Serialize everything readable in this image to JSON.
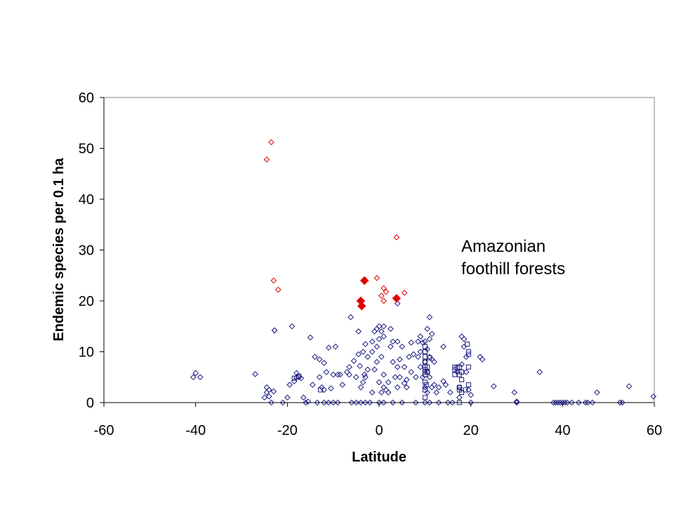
{
  "chart_data": {
    "type": "scatter",
    "title": "",
    "xlabel": "Latitude",
    "ylabel": "Endemic species per 0.1 ha",
    "xlim": [
      -60,
      60
    ],
    "ylim": [
      0,
      60
    ],
    "x_ticks": [
      "-60",
      "-40",
      "-20",
      "0",
      "20",
      "40",
      "60"
    ],
    "y_ticks": [
      "0",
      "10",
      "20",
      "30",
      "40",
      "50",
      "60"
    ],
    "grid": false,
    "legend": "none",
    "annotations": [
      {
        "id": "amazonian",
        "lines": [
          "Amazonian",
          "foothill forests"
        ]
      }
    ],
    "colors": {
      "navy": "#1a1a80",
      "red": "#e00000"
    },
    "series": [
      {
        "marker": "open-diamond",
        "color": "#1a1a80",
        "points": [
          [
            -40.5,
            5
          ],
          [
            -40,
            5.8
          ],
          [
            -39,
            5
          ],
          [
            -27,
            5.6
          ],
          [
            -25,
            1
          ],
          [
            -24.5,
            3
          ],
          [
            -24.5,
            2
          ],
          [
            -24,
            2.5
          ],
          [
            -24,
            1.2
          ],
          [
            -23.5,
            0
          ],
          [
            -23,
            2.2
          ],
          [
            -22.8,
            14.2
          ],
          [
            -21,
            0
          ],
          [
            -20,
            1
          ],
          [
            -19.5,
            3.5
          ],
          [
            -19,
            15
          ],
          [
            -18.5,
            4.2
          ],
          [
            -18,
            5.8
          ],
          [
            -18,
            5
          ],
          [
            -17.5,
            5
          ],
          [
            -17,
            4.8
          ],
          [
            -16.5,
            1
          ],
          [
            -16,
            0
          ],
          [
            -15.5,
            0.2
          ],
          [
            -15,
            12.8
          ],
          [
            -14.5,
            3.5
          ],
          [
            -14,
            9
          ],
          [
            -13.5,
            0
          ],
          [
            -13,
            8.5
          ],
          [
            -13,
            5
          ],
          [
            -12.5,
            3
          ],
          [
            -12,
            7.8
          ],
          [
            -12,
            2.5
          ],
          [
            -12,
            0
          ],
          [
            -11.5,
            6
          ],
          [
            -11,
            0
          ],
          [
            -11,
            10.8
          ],
          [
            -10.5,
            2.8
          ],
          [
            -10,
            5.5
          ],
          [
            -10,
            0
          ],
          [
            -9.5,
            11
          ],
          [
            -9,
            5.5
          ],
          [
            -9,
            0
          ],
          [
            -8.5,
            5.5
          ],
          [
            -8,
            3.5
          ],
          [
            -7,
            6
          ],
          [
            -6.5,
            5.5
          ],
          [
            -6.5,
            7
          ],
          [
            -6.2,
            16.8
          ],
          [
            -6,
            0
          ],
          [
            -5.5,
            8.2
          ],
          [
            -5,
            5
          ],
          [
            -5,
            0
          ],
          [
            -4.5,
            14
          ],
          [
            -4.5,
            9.5
          ],
          [
            -4.2,
            7.2
          ],
          [
            -4,
            3
          ],
          [
            -4,
            0
          ],
          [
            -3.5,
            4
          ],
          [
            -3.5,
            10
          ],
          [
            -3.2,
            5.5
          ],
          [
            -3,
            5
          ],
          [
            -3,
            11.5
          ],
          [
            -3,
            0
          ],
          [
            -2.5,
            6.5
          ],
          [
            -2.5,
            9
          ],
          [
            -2,
            0
          ],
          [
            -1.5,
            12
          ],
          [
            -1.5,
            10
          ],
          [
            -1.5,
            2
          ],
          [
            -1,
            6.5
          ],
          [
            -1,
            14
          ],
          [
            -0.5,
            14.5
          ],
          [
            -0.5,
            11
          ],
          [
            -0.5,
            8
          ],
          [
            0,
            15
          ],
          [
            0,
            12.5
          ],
          [
            0,
            4
          ],
          [
            0,
            0
          ],
          [
            0.5,
            14
          ],
          [
            0.5,
            9
          ],
          [
            0.5,
            2
          ],
          [
            1,
            15
          ],
          [
            1,
            13
          ],
          [
            1,
            5.5
          ],
          [
            1,
            3
          ],
          [
            1,
            0
          ],
          [
            1.5,
            2.5
          ],
          [
            2,
            4
          ],
          [
            2,
            2
          ],
          [
            2.5,
            11
          ],
          [
            2.5,
            14.5
          ],
          [
            3,
            12
          ],
          [
            3,
            8
          ],
          [
            3,
            0
          ],
          [
            3.5,
            5
          ],
          [
            4,
            7
          ],
          [
            4,
            12
          ],
          [
            4,
            3
          ],
          [
            4.5,
            8.5
          ],
          [
            4.5,
            5
          ],
          [
            5,
            11
          ],
          [
            5,
            0
          ],
          [
            5.5,
            7
          ],
          [
            5.5,
            3.8
          ],
          [
            6,
            4.5
          ],
          [
            6,
            3
          ],
          [
            6.5,
            9
          ],
          [
            7,
            6
          ],
          [
            7,
            11.8
          ],
          [
            7.5,
            9.5
          ],
          [
            8,
            0
          ],
          [
            8,
            5
          ],
          [
            8.5,
            9
          ],
          [
            8.5,
            12
          ],
          [
            9,
            13
          ],
          [
            9,
            10
          ],
          [
            9,
            7
          ],
          [
            9.5,
            11.8
          ],
          [
            9.5,
            5
          ],
          [
            10,
            12
          ],
          [
            10,
            8
          ],
          [
            10,
            3
          ],
          [
            10,
            0
          ],
          [
            10.5,
            14.5
          ],
          [
            10.5,
            10.5
          ],
          [
            10.5,
            6
          ],
          [
            10.5,
            2
          ],
          [
            11,
            16.8
          ],
          [
            11,
            12.5
          ],
          [
            11,
            9
          ],
          [
            11,
            5
          ],
          [
            11,
            0
          ],
          [
            11.5,
            13.5
          ],
          [
            11.5,
            8.5
          ],
          [
            11.5,
            3
          ],
          [
            12,
            8
          ],
          [
            12,
            3.5
          ],
          [
            12.5,
            2
          ],
          [
            13,
            3
          ],
          [
            13,
            0
          ],
          [
            14,
            11
          ],
          [
            14,
            4.2
          ],
          [
            14.5,
            3.5
          ],
          [
            15,
            0
          ],
          [
            15.5,
            2
          ],
          [
            16,
            0
          ],
          [
            17,
            6
          ],
          [
            17.5,
            3
          ],
          [
            17.5,
            1
          ],
          [
            18,
            13
          ],
          [
            18,
            7.5
          ],
          [
            18.5,
            12.5
          ],
          [
            18.5,
            11
          ],
          [
            19,
            9
          ],
          [
            19,
            6
          ],
          [
            19.5,
            2.5
          ],
          [
            20,
            0
          ],
          [
            20,
            1.5
          ],
          [
            22,
            9
          ],
          [
            22.5,
            8.5
          ],
          [
            25,
            3.2
          ],
          [
            29.5,
            2
          ],
          [
            30,
            0
          ],
          [
            30,
            0.2
          ],
          [
            35,
            6
          ],
          [
            38,
            0
          ],
          [
            38.5,
            0
          ],
          [
            39,
            0
          ],
          [
            39.5,
            0
          ],
          [
            40,
            0
          ],
          [
            40.5,
            0
          ],
          [
            41,
            0
          ],
          [
            42,
            0
          ],
          [
            43.5,
            0
          ],
          [
            45,
            0
          ],
          [
            45.5,
            0
          ],
          [
            46.5,
            0
          ],
          [
            47.5,
            2
          ],
          [
            52.5,
            0
          ],
          [
            53,
            0
          ],
          [
            54.5,
            3.2
          ],
          [
            59.8,
            1.2
          ],
          [
            -22.8,
            14.2
          ],
          [
            4,
            19.5
          ]
        ]
      },
      {
        "marker": "open-square",
        "color": "#1a1a80",
        "points": [
          [
            10,
            11
          ],
          [
            10,
            10
          ],
          [
            10,
            9
          ],
          [
            10,
            8
          ],
          [
            10,
            7
          ],
          [
            10,
            6.5
          ],
          [
            10,
            6
          ],
          [
            10,
            5.5
          ],
          [
            10,
            4
          ],
          [
            10,
            2.5
          ],
          [
            10,
            1
          ],
          [
            10.3,
            3.5
          ],
          [
            10.5,
            7
          ],
          [
            10.5,
            6
          ],
          [
            16.5,
            6.5
          ],
          [
            16.5,
            5.5
          ],
          [
            17,
            6.8
          ],
          [
            17.5,
            7
          ],
          [
            17.5,
            5.5
          ],
          [
            17.5,
            3
          ],
          [
            17.5,
            2.5
          ],
          [
            17.5,
            0
          ],
          [
            18,
            6
          ],
          [
            18,
            4.5
          ],
          [
            19.2,
            11.5
          ],
          [
            19.5,
            10
          ],
          [
            19.5,
            9.5
          ],
          [
            19.5,
            7
          ],
          [
            19.5,
            3.5
          ],
          [
            18.8,
            2.5
          ],
          [
            -12.8,
            2.5
          ],
          [
            11,
            8.8
          ],
          [
            18,
            2
          ],
          [
            16.5,
            7
          ],
          [
            -18.5,
            4.8
          ],
          [
            -17.5,
            5.2
          ]
        ]
      },
      {
        "marker": "open-diamond",
        "color": "#e00000",
        "points": [
          [
            -24.5,
            47.8
          ],
          [
            -23.5,
            51.2
          ],
          [
            -23,
            24
          ],
          [
            -22,
            22.2
          ],
          [
            -0.5,
            24.5
          ],
          [
            0.5,
            21
          ],
          [
            1,
            22.5
          ],
          [
            1.5,
            21.8
          ],
          [
            1,
            20
          ],
          [
            3.8,
            32.5
          ],
          [
            5.5,
            21.6
          ]
        ]
      },
      {
        "marker": "filled-diamond",
        "color": "#e00000",
        "points": [
          [
            -3.2,
            24
          ],
          [
            -4,
            20
          ],
          [
            -3.8,
            19
          ],
          [
            3.8,
            20.5
          ]
        ]
      }
    ]
  }
}
